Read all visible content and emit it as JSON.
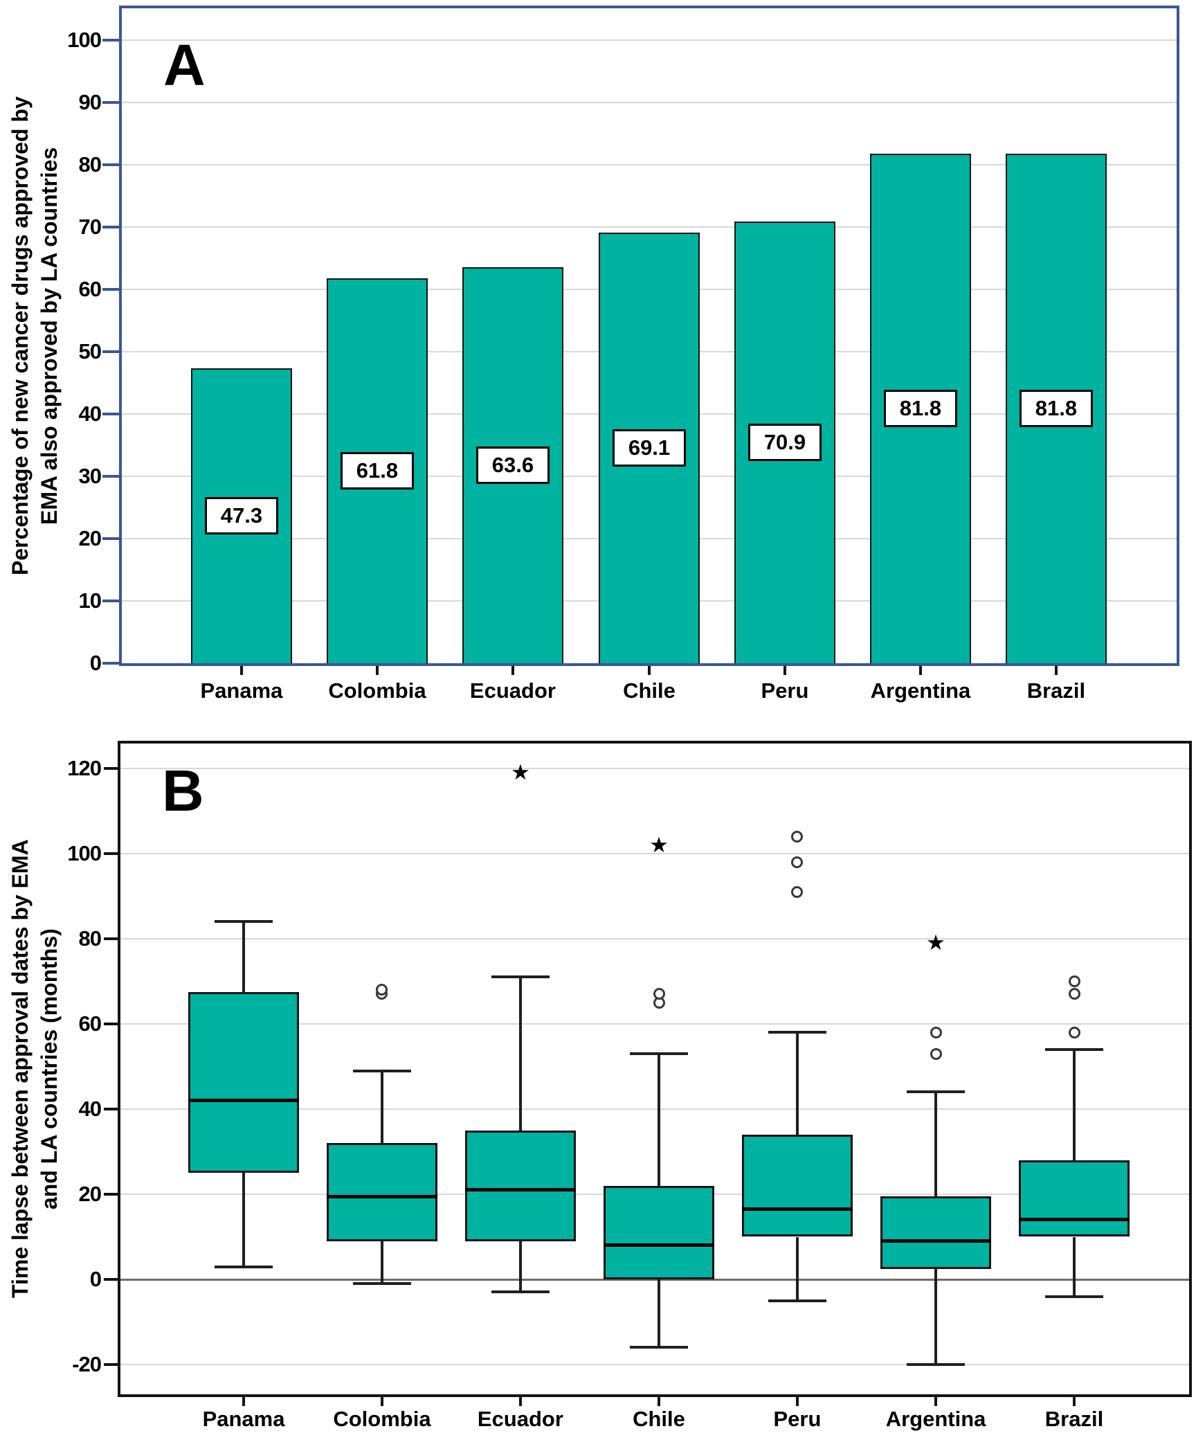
{
  "colors": {
    "box_fill": "#00B2A0",
    "frame_panel_a": "#3A5795",
    "frame_panel_b": "#141414",
    "gridline": "#d8d8d8",
    "zero_line": "#6e6e6e",
    "marker_stroke": "#383838",
    "text": "#000000"
  },
  "chart_data": [
    {
      "type": "bar",
      "panel_letter": "A",
      "ylabel_line1": "Percentage of new cancer drugs approved by",
      "ylabel_line2": "EMA also approved by LA countries",
      "categories": [
        "Panama",
        "Colombia",
        "Ecuador",
        "Chile",
        "Peru",
        "Argentina",
        "Brazil"
      ],
      "values": [
        47.3,
        61.8,
        63.6,
        69.1,
        70.9,
        81.8,
        81.8
      ],
      "bar_labels": [
        "47.3",
        "61.8",
        "63.6",
        "69.1",
        "70.9",
        "81.8",
        "81.8"
      ],
      "yticks": [
        0,
        10,
        20,
        30,
        40,
        50,
        60,
        70,
        80,
        90,
        100
      ],
      "ylim": [
        0,
        105
      ],
      "grid": "horizontal",
      "legend": "none"
    },
    {
      "type": "box",
      "panel_letter": "B",
      "ylabel_line1": "Time lapse between approval dates by EMA",
      "ylabel_line2": "and LA countries (months)",
      "categories": [
        "Panama",
        "Colombia",
        "Ecuador",
        "Chile",
        "Peru",
        "Argentina",
        "Brazil"
      ],
      "yticks": [
        120,
        100,
        80,
        60,
        40,
        20,
        0,
        -20
      ],
      "ylim": [
        -26,
        125
      ],
      "grid": "horizontal",
      "legend": "none",
      "series": [
        {
          "category": "Panama",
          "whisker_low": 3,
          "q1": 25,
          "median": 42,
          "q3": 67.5,
          "whisker_high": 84,
          "outliers": [],
          "extremes": []
        },
        {
          "category": "Colombia",
          "whisker_low": -1,
          "q1": 9,
          "median": 19.5,
          "q3": 32,
          "whisker_high": 49,
          "outliers": [
            67,
            68
          ],
          "extremes": []
        },
        {
          "category": "Ecuador",
          "whisker_low": -3,
          "q1": 9,
          "median": 21,
          "q3": 35,
          "whisker_high": 71,
          "outliers": [],
          "extremes": [
            119
          ]
        },
        {
          "category": "Chile",
          "whisker_low": -16,
          "q1": 0,
          "median": 8,
          "q3": 22,
          "whisker_high": 53,
          "outliers": [
            65,
            67
          ],
          "extremes": [
            102
          ]
        },
        {
          "category": "Peru",
          "whisker_low": -5,
          "q1": 10,
          "median": 16.5,
          "q3": 34,
          "whisker_high": 58,
          "outliers": [
            91,
            98,
            104
          ],
          "extremes": []
        },
        {
          "category": "Argentina",
          "whisker_low": -20,
          "q1": 2.5,
          "median": 9,
          "q3": 19.5,
          "whisker_high": 44,
          "outliers": [
            53,
            58
          ],
          "extremes": [
            79
          ]
        },
        {
          "category": "Brazil",
          "whisker_low": -4,
          "q1": 10,
          "median": 14,
          "q3": 28,
          "whisker_high": 54,
          "outliers": [
            58,
            67,
            70
          ],
          "extremes": []
        }
      ],
      "extreme_marker_glyph": "★"
    }
  ]
}
